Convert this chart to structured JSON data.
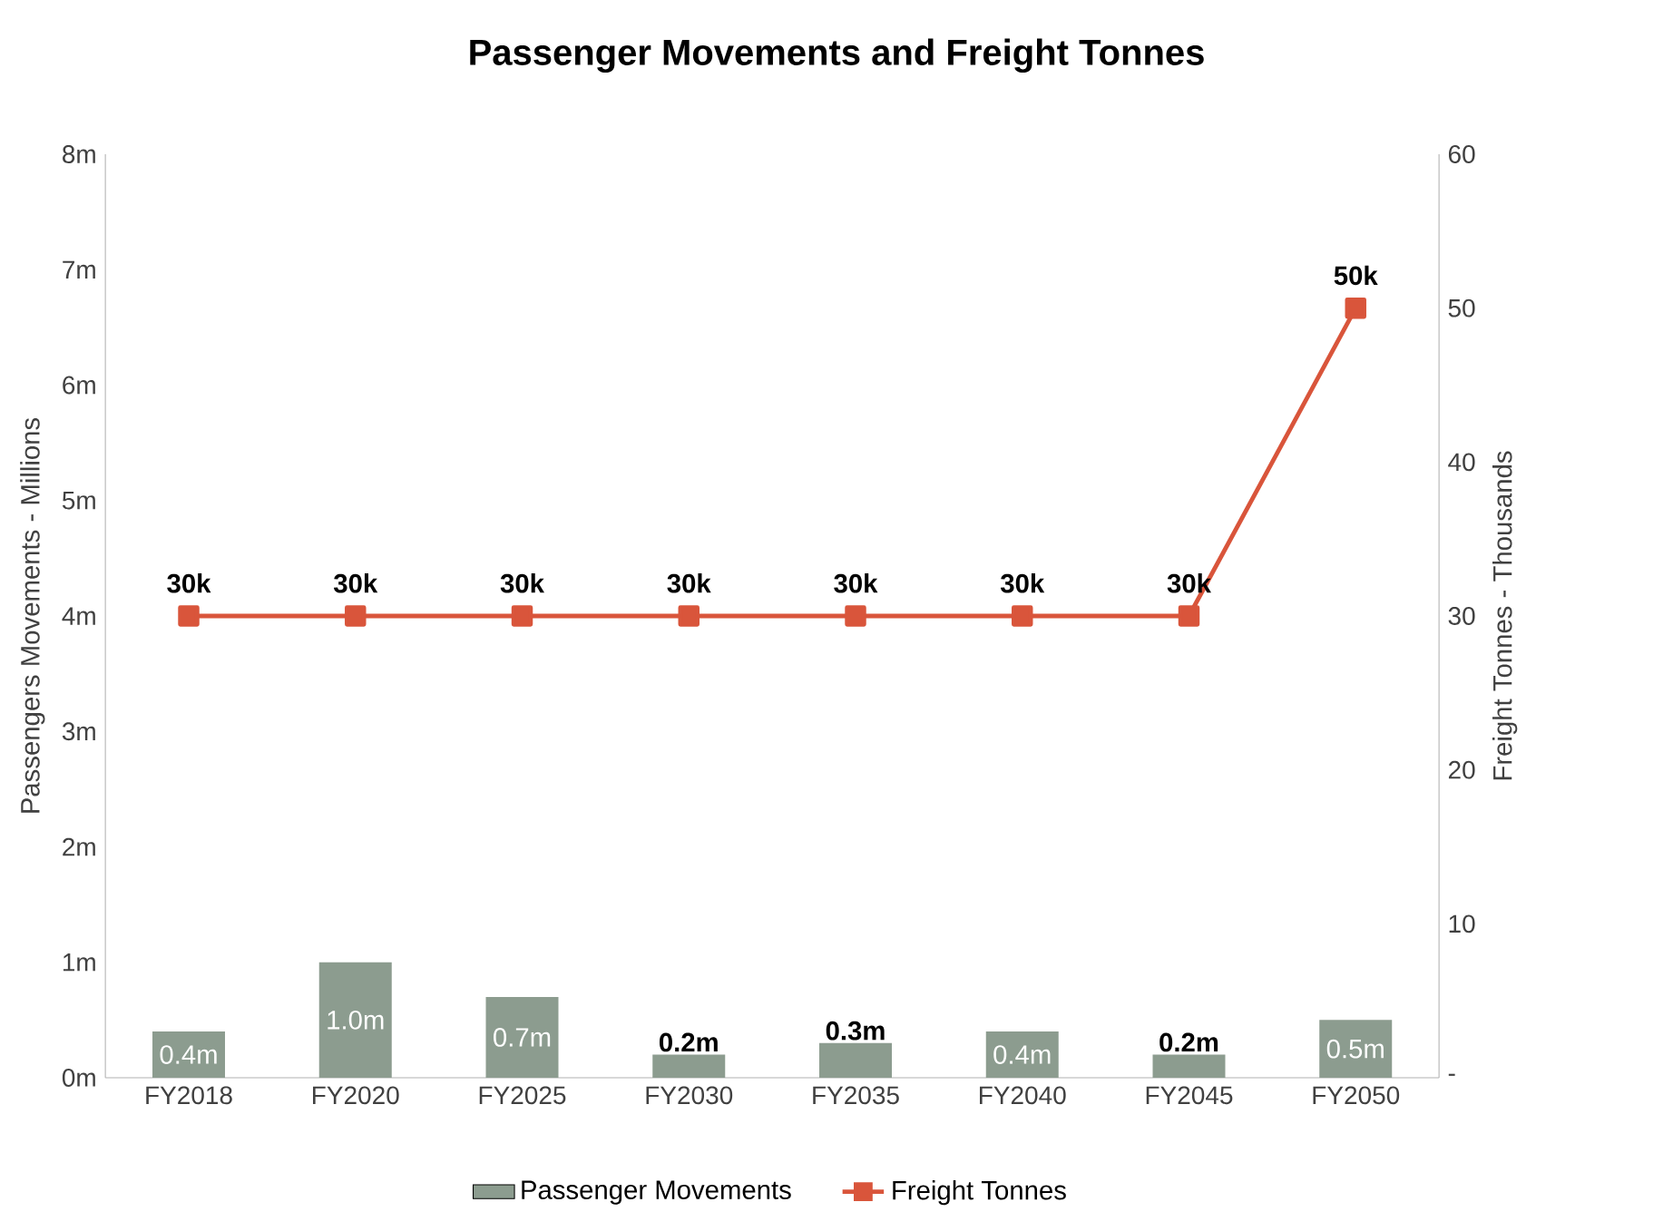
{
  "chart_data": {
    "type": "bar",
    "title": "Passenger Movements and Freight Tonnes",
    "categories": [
      "FY2018",
      "FY2020",
      "FY2025",
      "FY2030",
      "FY2035",
      "FY2040",
      "FY2045",
      "FY2050"
    ],
    "ylabel": "Passengers Movements - Millions",
    "y2label": "Freight Tonnes - Thousands",
    "ylim": [
      0,
      8
    ],
    "yticks": [
      {
        "value": 0,
        "label": "0m"
      },
      {
        "value": 1,
        "label": "1m"
      },
      {
        "value": 2,
        "label": "2m"
      },
      {
        "value": 3,
        "label": "3m"
      },
      {
        "value": 4,
        "label": "4m"
      },
      {
        "value": 5,
        "label": "5m"
      },
      {
        "value": 6,
        "label": "6m"
      },
      {
        "value": 7,
        "label": "7m"
      },
      {
        "value": 8,
        "label": "8m"
      }
    ],
    "y2lim": [
      0,
      60
    ],
    "y2ticks": [
      {
        "value": 0,
        "label": "-"
      },
      10,
      20,
      30,
      40,
      50,
      60
    ],
    "legend": "bottom",
    "marker": "square",
    "series": [
      {
        "name": "Passenger Movements",
        "color": "#8c9c8f",
        "values": [
          0.4,
          1.0,
          0.7,
          0.2,
          0.3,
          0.4,
          0.2,
          0.5
        ],
        "value_labels": [
          "0.4m",
          "1.0m",
          "0.7m",
          "0.2m",
          "0.3m",
          "0.4m",
          "0.2m",
          "0.5m"
        ]
      },
      {
        "name": "Freight Tonnes",
        "type": "line",
        "axis": "y2",
        "color": "#d9553b",
        "values": [
          30,
          30,
          30,
          30,
          30,
          30,
          30,
          50
        ],
        "value_labels": [
          "30k",
          "30k",
          "30k",
          "30k",
          "30k",
          "30k",
          "30k",
          "50k"
        ]
      }
    ]
  }
}
